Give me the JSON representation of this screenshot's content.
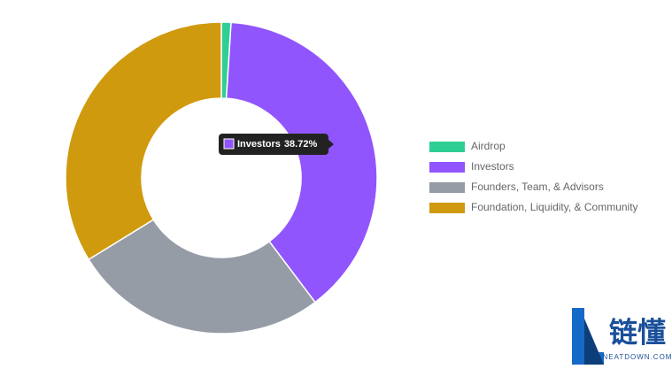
{
  "chart_data": {
    "type": "donut",
    "categories": [
      "Airdrop",
      "Investors",
      "Founders, Team, & Advisors",
      "Foundation, Liquidity, & Community"
    ],
    "values": [
      1,
      38.72,
      26.5,
      33.78
    ],
    "value_labels": [
      null,
      "38.72%",
      null,
      null
    ],
    "colors": [
      "#2ecf94",
      "#9155fd",
      "#959ca6",
      "#d09a0e"
    ],
    "tooltip_index": 1,
    "legend": "right"
  },
  "watermark": {
    "title": "链懂",
    "subtitle": "NEATDOWN.COM"
  }
}
